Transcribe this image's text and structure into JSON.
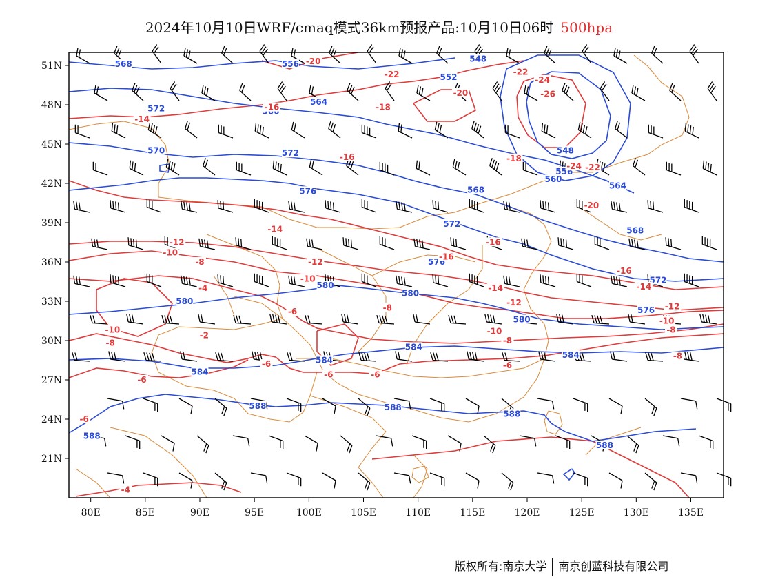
{
  "title": {
    "text": "2024年10月10日WRF/cmaq模式36km预报产品:10月10日06时",
    "level": "500hpa"
  },
  "axes": {
    "lat_labels": [
      "51N",
      "48N",
      "45N",
      "42N",
      "39N",
      "36N",
      "33N",
      "30N",
      "27N",
      "24N",
      "21N"
    ],
    "lon_labels": [
      "80E",
      "85E",
      "90E",
      "95E",
      "100E",
      "105E",
      "110E",
      "115E",
      "120E",
      "125E",
      "130E",
      "135E"
    ],
    "lon_range": [
      78,
      138
    ],
    "lat_range": [
      18,
      52
    ]
  },
  "colors": {
    "geopotential": "#2a4bd7",
    "temperature": "#e03a3a",
    "boundary": "#d98a3a",
    "wind": "#000000"
  },
  "height_labels": [
    {
      "text": "568",
      "lon": 83.0,
      "lat": 51.0
    },
    {
      "text": "556",
      "lon": 98.3,
      "lat": 51.0
    },
    {
      "text": "548",
      "lon": 115.5,
      "lat": 51.4
    },
    {
      "text": "552",
      "lon": 112.8,
      "lat": 50.0
    },
    {
      "text": "564",
      "lon": 100.9,
      "lat": 48.1
    },
    {
      "text": "566",
      "lon": 96.5,
      "lat": 47.4
    },
    {
      "text": "572",
      "lon": 86.0,
      "lat": 47.6
    },
    {
      "text": "570",
      "lon": 86.0,
      "lat": 44.4
    },
    {
      "text": "572",
      "lon": 98.3,
      "lat": 44.2
    },
    {
      "text": "576",
      "lon": 99.9,
      "lat": 41.3
    },
    {
      "text": "548",
      "lon": 123.5,
      "lat": 44.4
    },
    {
      "text": "556",
      "lon": 123.4,
      "lat": 42.8
    },
    {
      "text": "560",
      "lon": 122.4,
      "lat": 42.2
    },
    {
      "text": "564",
      "lon": 128.3,
      "lat": 41.7
    },
    {
      "text": "568",
      "lon": 115.3,
      "lat": 41.4
    },
    {
      "text": "572",
      "lon": 113.1,
      "lat": 38.8
    },
    {
      "text": "568",
      "lon": 129.9,
      "lat": 38.3
    },
    {
      "text": "576",
      "lon": 111.7,
      "lat": 35.9
    },
    {
      "text": "580",
      "lon": 101.5,
      "lat": 34.1
    },
    {
      "text": "580",
      "lon": 109.3,
      "lat": 33.5
    },
    {
      "text": "580",
      "lon": 88.6,
      "lat": 32.9
    },
    {
      "text": "572",
      "lon": 132.0,
      "lat": 34.5
    },
    {
      "text": "576",
      "lon": 130.9,
      "lat": 32.2
    },
    {
      "text": "580",
      "lon": 119.5,
      "lat": 31.5
    },
    {
      "text": "584",
      "lon": 109.6,
      "lat": 29.4
    },
    {
      "text": "584",
      "lon": 124.0,
      "lat": 28.8
    },
    {
      "text": "584",
      "lon": 101.4,
      "lat": 28.4
    },
    {
      "text": "584",
      "lon": 90.0,
      "lat": 27.5
    },
    {
      "text": "588",
      "lon": 95.3,
      "lat": 24.9
    },
    {
      "text": "588",
      "lon": 107.7,
      "lat": 24.8
    },
    {
      "text": "588",
      "lon": 118.6,
      "lat": 24.3
    },
    {
      "text": "588",
      "lon": 80.1,
      "lat": 22.6
    },
    {
      "text": "588",
      "lon": 127.1,
      "lat": 21.9
    }
  ],
  "temp_labels": [
    {
      "text": "-20",
      "lon": 100.4,
      "lat": 51.2
    },
    {
      "text": "-22",
      "lon": 107.6,
      "lat": 50.2
    },
    {
      "text": "-22",
      "lon": 119.4,
      "lat": 50.4
    },
    {
      "text": "-24",
      "lon": 121.4,
      "lat": 49.8
    },
    {
      "text": "-26",
      "lon": 121.9,
      "lat": 48.7
    },
    {
      "text": "-20",
      "lon": 113.9,
      "lat": 48.8
    },
    {
      "text": "-18",
      "lon": 106.8,
      "lat": 47.7
    },
    {
      "text": "-16",
      "lon": 96.6,
      "lat": 47.7
    },
    {
      "text": "-14",
      "lon": 84.7,
      "lat": 46.8
    },
    {
      "text": "-16",
      "lon": 103.5,
      "lat": 43.9
    },
    {
      "text": "-18",
      "lon": 118.8,
      "lat": 43.8
    },
    {
      "text": "-24",
      "lon": 124.3,
      "lat": 43.2
    },
    {
      "text": "-22",
      "lon": 126.0,
      "lat": 43.1
    },
    {
      "text": "-20",
      "lon": 125.9,
      "lat": 40.2
    },
    {
      "text": "-14",
      "lon": 96.9,
      "lat": 38.4
    },
    {
      "text": "-16",
      "lon": 116.9,
      "lat": 37.4
    },
    {
      "text": "-12",
      "lon": 87.9,
      "lat": 37.4
    },
    {
      "text": "-10",
      "lon": 87.3,
      "lat": 36.6
    },
    {
      "text": "-8",
      "lon": 90.0,
      "lat": 35.9
    },
    {
      "text": "-12",
      "lon": 100.6,
      "lat": 35.9
    },
    {
      "text": "-16",
      "lon": 112.6,
      "lat": 36.3
    },
    {
      "text": "-16",
      "lon": 128.9,
      "lat": 35.2
    },
    {
      "text": "-10",
      "lon": 99.9,
      "lat": 34.6
    },
    {
      "text": "-4",
      "lon": 90.3,
      "lat": 33.9
    },
    {
      "text": "-14",
      "lon": 117.1,
      "lat": 33.9
    },
    {
      "text": "-14",
      "lon": 130.7,
      "lat": 34.0
    },
    {
      "text": "-12",
      "lon": 118.8,
      "lat": 32.8
    },
    {
      "text": "-12",
      "lon": 133.3,
      "lat": 32.5
    },
    {
      "text": "-6",
      "lon": 98.5,
      "lat": 32.1
    },
    {
      "text": "-8",
      "lon": 107.2,
      "lat": 32.4
    },
    {
      "text": "-10",
      "lon": 132.8,
      "lat": 31.4
    },
    {
      "text": "-10",
      "lon": 117.0,
      "lat": 30.6
    },
    {
      "text": "-8",
      "lon": 133.2,
      "lat": 30.7
    },
    {
      "text": "-10",
      "lon": 82.0,
      "lat": 30.7
    },
    {
      "text": "-8",
      "lon": 81.8,
      "lat": 29.7
    },
    {
      "text": "-2",
      "lon": 90.4,
      "lat": 30.3
    },
    {
      "text": "-8",
      "lon": 118.2,
      "lat": 29.9
    },
    {
      "text": "-8",
      "lon": 133.8,
      "lat": 28.7
    },
    {
      "text": "-6",
      "lon": 96.1,
      "lat": 28.1
    },
    {
      "text": "-6",
      "lon": 118.2,
      "lat": 28.0
    },
    {
      "text": "-6",
      "lon": 101.8,
      "lat": 27.3
    },
    {
      "text": "-6",
      "lon": 106.1,
      "lat": 27.3
    },
    {
      "text": "-6",
      "lon": 84.7,
      "lat": 26.9
    },
    {
      "text": "-6",
      "lon": 79.4,
      "lat": 23.9
    },
    {
      "text": "-4",
      "lon": 83.2,
      "lat": 18.5
    }
  ],
  "footer": {
    "left": "版权所有:南京大学",
    "right": "南京创蓝科技有限公司"
  }
}
